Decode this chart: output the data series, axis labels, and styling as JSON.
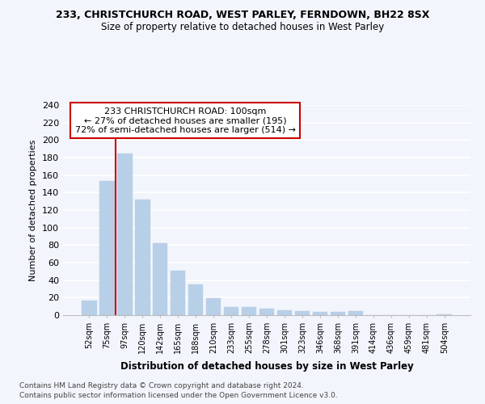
{
  "title": "233, CHRISTCHURCH ROAD, WEST PARLEY, FERNDOWN, BH22 8SX",
  "subtitle": "Size of property relative to detached houses in West Parley",
  "xlabel": "Distribution of detached houses by size in West Parley",
  "ylabel": "Number of detached properties",
  "bar_labels": [
    "52sqm",
    "75sqm",
    "97sqm",
    "120sqm",
    "142sqm",
    "165sqm",
    "188sqm",
    "210sqm",
    "233sqm",
    "255sqm",
    "278sqm",
    "301sqm",
    "323sqm",
    "346sqm",
    "368sqm",
    "391sqm",
    "414sqm",
    "436sqm",
    "459sqm",
    "481sqm",
    "504sqm"
  ],
  "bar_values": [
    17,
    153,
    185,
    132,
    82,
    51,
    35,
    19,
    9,
    9,
    7,
    6,
    5,
    4,
    4,
    5,
    0,
    0,
    0,
    0,
    1
  ],
  "bar_color": "#b8cfe8",
  "bar_edge_color": "#b8cfe8",
  "vline_color": "#cc0000",
  "ylim": [
    0,
    240
  ],
  "yticks": [
    0,
    20,
    40,
    60,
    80,
    100,
    120,
    140,
    160,
    180,
    200,
    220,
    240
  ],
  "annotation_title": "233 CHRISTCHURCH ROAD: 100sqm",
  "annotation_line1": "← 27% of detached houses are smaller (195)",
  "annotation_line2": "72% of semi-detached houses are larger (514) →",
  "footer_line1": "Contains HM Land Registry data © Crown copyright and database right 2024.",
  "footer_line2": "Contains public sector information licensed under the Open Government Licence v3.0.",
  "background_color": "#f2f5fb",
  "plot_bg_color": "#f2f5fb"
}
